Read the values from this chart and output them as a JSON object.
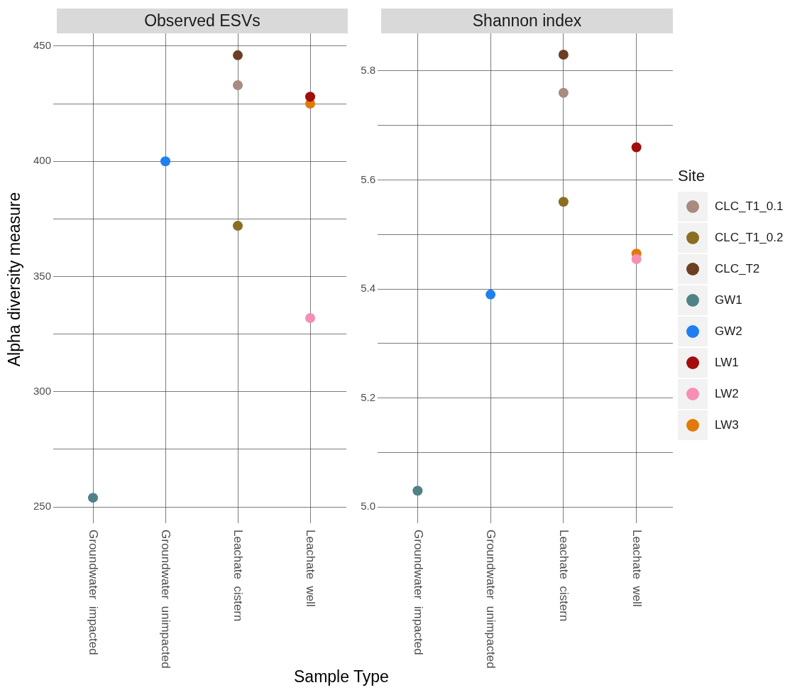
{
  "chart_data": [
    {
      "type": "scatter",
      "title": "Observed ESVs",
      "ylabel": "Alpha diversity measure",
      "xlabel": "Sample Type",
      "categories": [
        "Groundwater  impacted",
        "Groundwater  unimpacted",
        "Leachate  cistern",
        "Leachate  well"
      ],
      "ylim": [
        244.5,
        455.5
      ],
      "yticks": [
        250,
        {
          "value": 275,
          "label": null
        },
        300,
        {
          "value": 325,
          "label": null
        },
        350,
        {
          "value": 375,
          "label": null
        },
        400,
        {
          "value": 425,
          "label": null
        },
        450
      ],
      "grid": true,
      "marker": "circle",
      "series": [
        {
          "color": "#a88a80",
          "values": [
            null,
            null,
            433,
            null
          ]
        },
        {
          "color": "#8b6d24",
          "values": [
            null,
            null,
            372,
            null
          ]
        },
        {
          "color": "#6b3f22",
          "values": [
            null,
            null,
            446,
            null
          ]
        },
        {
          "color": "#4f8285",
          "values": [
            254,
            null,
            null,
            null
          ]
        },
        {
          "color": "#1f7ff0",
          "values": [
            null,
            400,
            null,
            null
          ]
        },
        {
          "color": "#a40d0d",
          "values": [
            null,
            null,
            null,
            428
          ]
        },
        {
          "color": "#f58fb5",
          "values": [
            null,
            null,
            null,
            332
          ]
        },
        {
          "color": "#e07a0a",
          "values": [
            null,
            null,
            null,
            425
          ]
        }
      ]
    },
    {
      "type": "scatter",
      "title": "Shannon index",
      "legend_title": "Site",
      "legend": "right",
      "categories": [
        "Groundwater  impacted",
        "Groundwater  unimpacted",
        "Leachate  cistern",
        "Leachate  well"
      ],
      "ylim": [
        4.977,
        5.869
      ],
      "yticks": [
        {
          "value": 5,
          "label": "5.0"
        },
        {
          "value": 5.1,
          "label": null
        },
        5.2,
        {
          "value": 5.3,
          "label": null
        },
        5.4,
        {
          "value": 5.5,
          "label": null
        },
        5.6,
        {
          "value": 5.7,
          "label": null
        },
        5.8
      ],
      "grid": true,
      "marker": "circle",
      "series": [
        {
          "name": "CLC_T1_0.1",
          "color": "#a88a80",
          "values": [
            null,
            null,
            5.76,
            null
          ]
        },
        {
          "name": "CLC_T1_0.2",
          "color": "#8b6d24",
          "values": [
            null,
            null,
            5.56,
            null
          ]
        },
        {
          "name": "CLC_T2",
          "color": "#6b3f22",
          "values": [
            null,
            null,
            5.83,
            null
          ]
        },
        {
          "name": "GW1",
          "color": "#4f8285",
          "values": [
            5.03,
            null,
            null,
            null
          ]
        },
        {
          "name": "GW2",
          "color": "#1f7ff0",
          "values": [
            null,
            5.39,
            null,
            null
          ]
        },
        {
          "name": "LW1",
          "color": "#a40d0d",
          "values": [
            null,
            null,
            null,
            5.66
          ]
        },
        {
          "name": "LW2",
          "color": "#f58fb5",
          "values": [
            null,
            null,
            null,
            5.455
          ]
        },
        {
          "name": "LW3",
          "color": "#e07a0a",
          "values": [
            null,
            null,
            null,
            5.465
          ]
        }
      ]
    }
  ]
}
